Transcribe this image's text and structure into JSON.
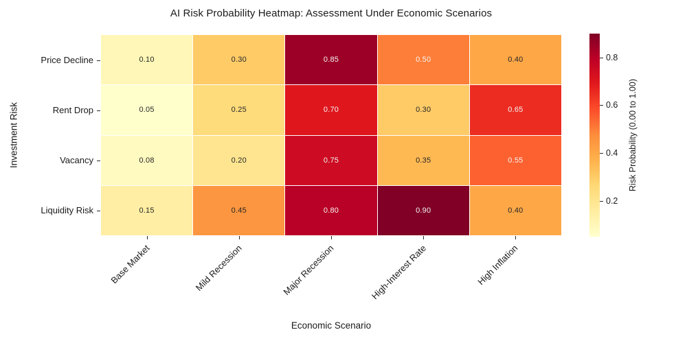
{
  "title": "AI Risk Probability Heatmap: Assessment Under Economic Scenarios",
  "chart_data": {
    "type": "heatmap",
    "title": "AI Risk Probability Heatmap: Assessment Under Economic Scenarios",
    "xlabel": "Economic Scenario",
    "ylabel": "Investment Risk",
    "x_categories": [
      "Base Market",
      "Mild Recession",
      "Major Recession",
      "High-Interest Rate",
      "High Inflation"
    ],
    "y_categories": [
      "Price Decline",
      "Rent Drop",
      "Vacancy",
      "Liquidity Risk"
    ],
    "values": [
      [
        0.1,
        0.3,
        0.85,
        0.5,
        0.4
      ],
      [
        0.05,
        0.25,
        0.7,
        0.3,
        0.65
      ],
      [
        0.08,
        0.2,
        0.75,
        0.35,
        0.55
      ],
      [
        0.15,
        0.45,
        0.8,
        0.9,
        0.4
      ]
    ],
    "annot_decimals": 2,
    "vmin": 0.05,
    "vmax": 0.9,
    "colormap_name": "YlOrRd",
    "colormap_stops": [
      "#ffffcc",
      "#ffeda0",
      "#fed976",
      "#feb24c",
      "#fd8d3c",
      "#fc4e2a",
      "#e31a1c",
      "#bd0026",
      "#800026"
    ],
    "annotation_text_dark": "#262626",
    "annotation_text_light": "#f5f5f5",
    "grid_line_color": "#ffffff",
    "legend_position": "right",
    "colorbar": {
      "label": "Risk Probability (0.00 to 1.00)",
      "ticks": [
        0.2,
        0.4,
        0.6,
        0.8
      ],
      "tick_decimals": 1
    }
  }
}
